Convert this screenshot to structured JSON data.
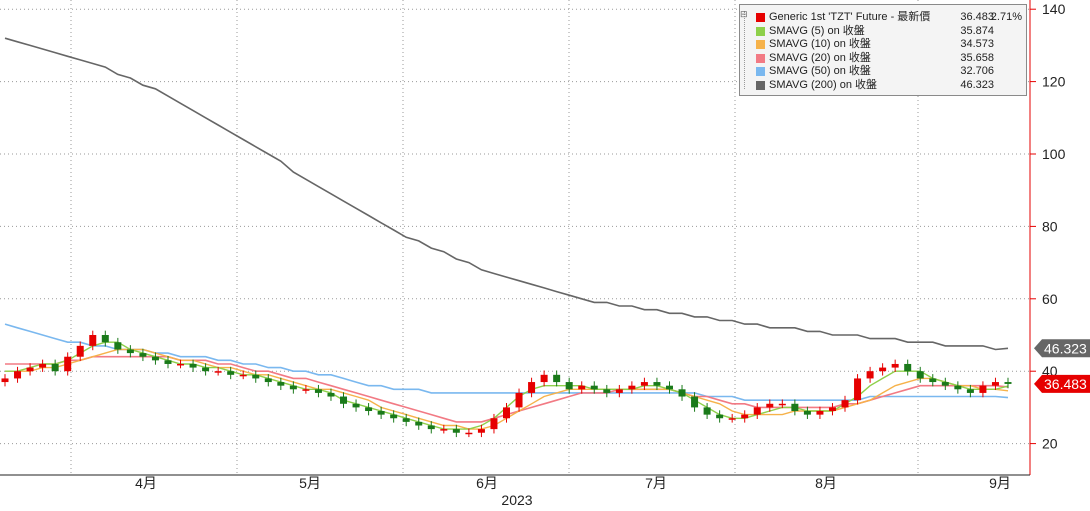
{
  "chart_data": {
    "type": "candlestick",
    "title": "",
    "xlabel": "2023",
    "ylabel": "",
    "ylim": [
      12,
      142
    ],
    "yticks": [
      20,
      40,
      60,
      80,
      100,
      120,
      140
    ],
    "x_tick_labels": [
      "4月",
      "5月",
      "6月",
      "7月",
      "8月",
      "9月"
    ],
    "year_label": "2023",
    "grid": true,
    "legend_position": "top-right",
    "colors": {
      "up": "#e60000",
      "down": "#1a7a1a",
      "sma5": "#8ed04a",
      "sma10": "#f6b24a",
      "sma20": "#f27a84",
      "sma50": "#7ab8ef",
      "sma200": "#666666",
      "axis": "#e60000"
    },
    "legend": [
      {
        "name": "Generic 1st 'TZT' Future - 最新價",
        "value": "36.483",
        "change": "2.71%",
        "color": "#e60000"
      },
      {
        "name": "SMAVG (5)  on 收盤",
        "value": "35.874",
        "change": "",
        "color": "#8ed04a"
      },
      {
        "name": "SMAVG (10)  on 收盤",
        "value": "34.573",
        "change": "",
        "color": "#f6b24a"
      },
      {
        "name": "SMAVG (20)  on 收盤",
        "value": "35.658",
        "change": "",
        "color": "#f27a84"
      },
      {
        "name": "SMAVG (50)  on 收盤",
        "value": "32.706",
        "change": "",
        "color": "#7ab8ef"
      },
      {
        "name": "SMAVG (200)  on 收盤",
        "value": "46.323",
        "change": "",
        "color": "#666666"
      }
    ],
    "last_price_tags": [
      {
        "value": "46.323",
        "y": 46.323,
        "bg": "#666666"
      },
      {
        "value": "36.483",
        "y": 36.483,
        "bg": "#e60000"
      }
    ],
    "closes": [
      38,
      40,
      41,
      42,
      40,
      44,
      47,
      50,
      48,
      46,
      45,
      44,
      43,
      42,
      42,
      41,
      40,
      40,
      39,
      39,
      38,
      37,
      36,
      35,
      35,
      34,
      33,
      31,
      30,
      29,
      28,
      27,
      26,
      25,
      24,
      24,
      23,
      23,
      24,
      27,
      30,
      34,
      37,
      39,
      37,
      35,
      36,
      35,
      34,
      35,
      36,
      37,
      36,
      35,
      33,
      30,
      28,
      27,
      27,
      28,
      30,
      31,
      31,
      29,
      28,
      29,
      30,
      32,
      38,
      40,
      41,
      42,
      40,
      38,
      37,
      36,
      35,
      34,
      36,
      37,
      36.483
    ],
    "sma5": [
      40,
      40,
      41,
      42,
      42,
      43,
      45,
      47,
      48,
      48,
      46,
      45,
      44,
      43,
      42,
      42,
      41,
      41,
      40,
      39,
      39,
      38,
      37,
      36,
      35,
      35,
      34,
      32,
      31,
      30,
      29,
      28,
      27,
      26,
      25,
      24,
      24,
      24,
      25,
      27,
      30,
      33,
      35,
      36,
      36,
      36,
      36,
      35,
      35,
      35,
      35,
      36,
      36,
      35,
      34,
      32,
      30,
      28,
      27,
      27,
      28,
      29,
      30,
      30,
      29,
      29,
      29,
      31,
      33,
      36,
      38,
      40,
      40,
      40,
      38,
      37,
      36,
      35,
      35,
      35,
      35.874
    ],
    "sma10": [
      40,
      40,
      40,
      41,
      41,
      42,
      43,
      44,
      45,
      46,
      46,
      46,
      45,
      44,
      43,
      43,
      42,
      41,
      41,
      40,
      39,
      39,
      38,
      37,
      36,
      35,
      35,
      34,
      33,
      32,
      30,
      29,
      28,
      27,
      26,
      25,
      25,
      24,
      24,
      25,
      27,
      29,
      31,
      33,
      34,
      35,
      35,
      35,
      35,
      35,
      35,
      35,
      35,
      35,
      34,
      33,
      32,
      31,
      29,
      28,
      28,
      28,
      28,
      29,
      29,
      29,
      29,
      30,
      31,
      32,
      34,
      36,
      37,
      38,
      38,
      37,
      36,
      36,
      35,
      35,
      34.573
    ],
    "sma20": [
      42,
      42,
      42,
      42,
      42,
      43,
      43,
      44,
      44,
      44,
      44,
      44,
      44,
      44,
      43,
      43,
      43,
      42,
      42,
      41,
      40,
      40,
      39,
      38,
      38,
      37,
      36,
      35,
      34,
      33,
      32,
      31,
      30,
      29,
      28,
      27,
      26,
      26,
      26,
      27,
      28,
      29,
      30,
      31,
      32,
      33,
      34,
      34,
      34,
      35,
      35,
      35,
      35,
      35,
      34,
      33,
      33,
      32,
      31,
      31,
      30,
      30,
      30,
      30,
      30,
      30,
      30,
      31,
      31,
      32,
      33,
      34,
      35,
      36,
      36,
      36,
      36,
      36,
      36,
      36,
      35.658
    ],
    "sma50": [
      53,
      52,
      51,
      50,
      49,
      48,
      48,
      47,
      47,
      46,
      46,
      46,
      45,
      45,
      44,
      44,
      44,
      43,
      43,
      42,
      42,
      41,
      41,
      40,
      40,
      39,
      39,
      38,
      37,
      36,
      36,
      35,
      35,
      35,
      34,
      34,
      34,
      34,
      34,
      34,
      34,
      34,
      34,
      34,
      34,
      34,
      34,
      34,
      34,
      34,
      34,
      34,
      34,
      34,
      34,
      34,
      33,
      33,
      33,
      32,
      32,
      32,
      32,
      32,
      32,
      32,
      32,
      32,
      32,
      33,
      33,
      33,
      33,
      33,
      33,
      33,
      33,
      33,
      33,
      33,
      32.706
    ],
    "sma200": [
      132,
      131,
      130,
      129,
      128,
      127,
      126,
      125,
      124,
      122,
      121,
      119,
      118,
      116,
      114,
      112,
      110,
      108,
      106,
      104,
      102,
      100,
      98,
      95,
      93,
      91,
      89,
      87,
      85,
      83,
      81,
      79,
      77,
      76,
      74,
      73,
      71,
      70,
      68,
      67,
      66,
      65,
      64,
      63,
      62,
      61,
      60,
      59,
      59,
      58,
      58,
      57,
      57,
      56,
      56,
      55,
      55,
      54,
      54,
      53,
      53,
      52,
      52,
      52,
      51,
      51,
      50,
      50,
      50,
      49,
      49,
      49,
      48,
      48,
      48,
      47,
      47,
      47,
      47,
      46,
      46.323
    ]
  }
}
